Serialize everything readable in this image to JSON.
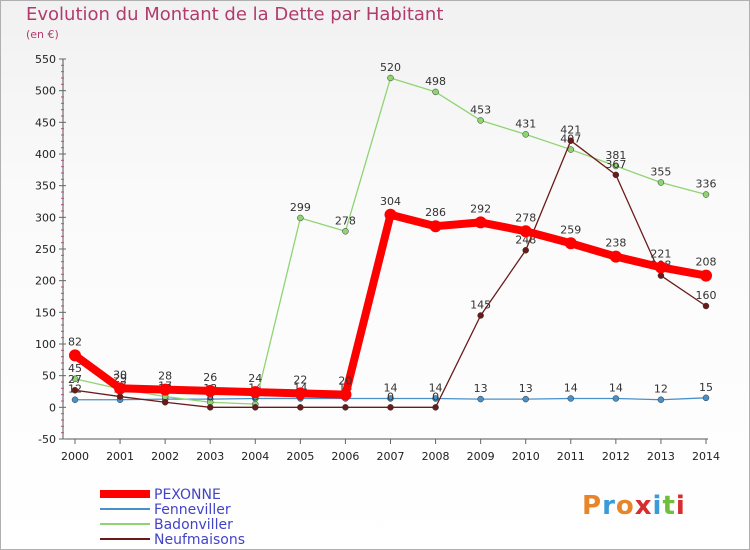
{
  "title": "Evolution du Montant de la Dette par Habitant",
  "subtitle": "(en €)",
  "brand": "Proxiti",
  "brand_colors": [
    "#e8852a",
    "#3b9ad9",
    "#e8852a",
    "#d62e2e",
    "#3b9ad9",
    "#6fbf3c",
    "#d62e2e"
  ],
  "chart_data": {
    "type": "line",
    "title": "Evolution du Montant de la Dette par Habitant",
    "subtitle": "(en €)",
    "xlabel": "",
    "ylabel": "",
    "x": [
      "2000",
      "2001",
      "2002",
      "2003",
      "2004",
      "2005",
      "2006",
      "2007",
      "2008",
      "2009",
      "2010",
      "2011",
      "2012",
      "2013",
      "2014"
    ],
    "ylim": [
      -50,
      550
    ],
    "yticks": [
      -50,
      0,
      50,
      100,
      150,
      200,
      250,
      300,
      350,
      400,
      450,
      500,
      550
    ],
    "grid": false,
    "legend_position": "bottom-left",
    "series": [
      {
        "name": "PEXONNE",
        "color": "#ff0000",
        "width": 8,
        "marker": 6,
        "values": [
          82,
          30,
          28,
          26,
          24,
          22,
          20,
          304,
          286,
          292,
          278,
          259,
          238,
          221,
          208
        ],
        "labels": [
          "82",
          "30",
          "28",
          "26",
          "24",
          "22",
          "20",
          "304",
          "286",
          "292",
          "278",
          "259",
          "238",
          "221",
          "208"
        ]
      },
      {
        "name": "Fenneviller",
        "color": "#4a90c8",
        "width": 1.3,
        "marker": 3,
        "values": [
          12,
          12,
          13,
          13,
          14,
          14,
          14,
          14,
          14,
          13,
          13,
          14,
          14,
          12,
          15
        ],
        "labels": [
          "12",
          "12",
          "13",
          "13",
          "14",
          "14",
          "14",
          "14",
          "14",
          "13",
          "13",
          "14",
          "14",
          "12",
          "15"
        ]
      },
      {
        "name": "Badonviller",
        "color": "#8fd472",
        "width": 1.3,
        "marker": 3,
        "values": [
          45,
          29,
          17,
          8,
          5,
          299,
          278,
          520,
          498,
          453,
          431,
          407,
          381,
          355,
          336
        ],
        "labels": [
          "45",
          "29",
          "17",
          "8",
          "5",
          "299",
          "278",
          "520",
          "498",
          "453",
          "431",
          "407",
          "381",
          "355",
          "336"
        ]
      },
      {
        "name": "Neufmaisons",
        "color": "#6b1a1a",
        "width": 1.3,
        "marker": 3,
        "values": [
          27,
          17,
          8,
          0,
          0,
          0,
          0,
          0,
          0,
          145,
          248,
          421,
          367,
          208,
          160
        ],
        "labels": [
          "27",
          "17",
          "8",
          "0",
          "0",
          "0",
          "0",
          "0",
          "0",
          "145",
          "248",
          "421",
          "367",
          "208",
          "160"
        ]
      }
    ]
  }
}
